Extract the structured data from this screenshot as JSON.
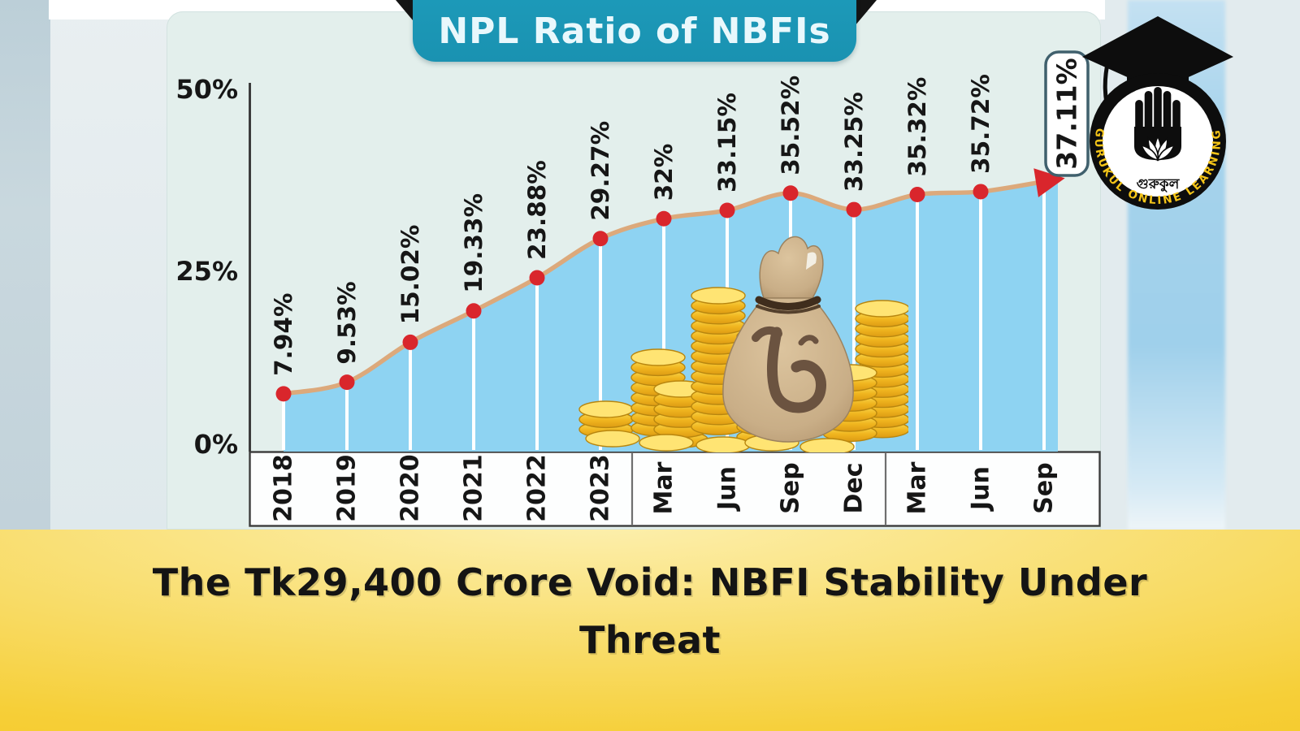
{
  "chart_data": {
    "type": "area",
    "title": "NPL Ratio of NBFIs",
    "unit": "%",
    "x_labels": [
      "2018",
      "2019",
      "2020",
      "2021",
      "2022",
      "2023",
      "Mar",
      "Jun",
      "Sep",
      "Dec",
      "Mar",
      "Jun",
      "Sep"
    ],
    "values": [
      7.94,
      9.53,
      15.02,
      19.33,
      23.88,
      29.27,
      32,
      33.15,
      35.52,
      33.25,
      35.32,
      35.72,
      37.11
    ],
    "point_labels": [
      "7.94%",
      "9.53%",
      "15.02%",
      "19.33%",
      "23.88%",
      "29.27%",
      "32%",
      "33.15%",
      "35.52%",
      "33.25%",
      "35.32%",
      "35.72%",
      "37.11%"
    ],
    "final_point_boxed_label": "37.11%",
    "y_ticks": [
      {
        "label": "50%",
        "value": 50
      },
      {
        "label": "25%",
        "value": 25
      },
      {
        "label": "0%",
        "value": 0
      }
    ],
    "ylim": [
      0,
      50
    ],
    "grid": false,
    "legend": false,
    "x_group_dividers_after_index": [
      5,
      9
    ],
    "colors": {
      "area": "#8ed3f2",
      "line": "#dca97b",
      "dot": "#d9262c",
      "arrow": "#d9262c",
      "dropline": "#ffffff",
      "label_text": "#161616",
      "axis": "#3c3c3c",
      "title_bg": "#1b96b5",
      "title_text": "#e9f8fc",
      "card_bg": "#e3efec",
      "final_box_border": "#40606d"
    }
  },
  "footer_banner": {
    "lines": [
      "The Tk29,400 Crore Void: NBFI Stability Under",
      "Threat"
    ],
    "background": "#f6cf38",
    "text_color": "#141414"
  },
  "logo": {
    "ring_text": "GURUKUL ONLINE LEARNING",
    "org_name_bengali": "গুরুকুল",
    "ring_text_color": "#f5c518"
  },
  "illustration": {
    "name": "money-bag-with-gold-coins",
    "currency_symbol": "৳"
  }
}
